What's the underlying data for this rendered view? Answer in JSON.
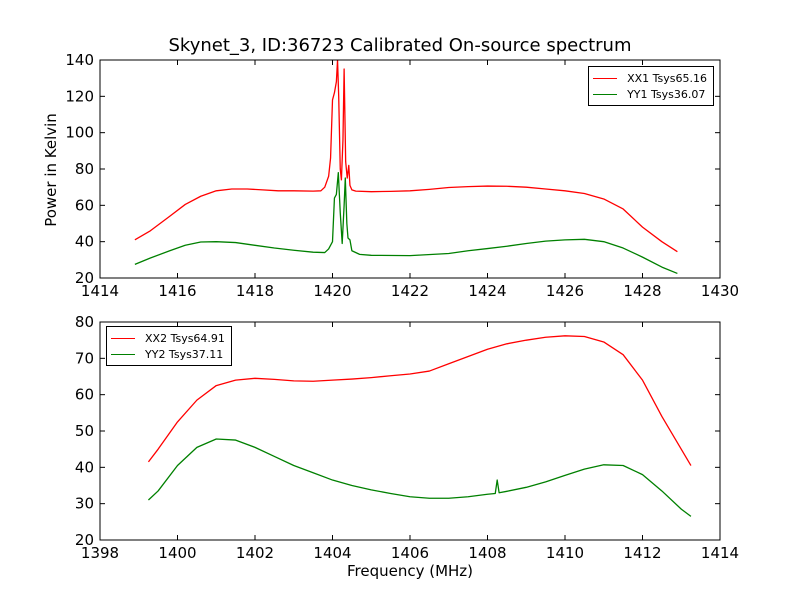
{
  "chart_data": [
    {
      "type": "line",
      "title": "Skynet_3, ID:36723 Calibrated On-source spectrum",
      "ylabel": "Power in Kelvin",
      "xlabel": "",
      "xlim": [
        1414,
        1430
      ],
      "ylim": [
        20,
        140
      ],
      "xticks": [
        1414,
        1416,
        1418,
        1420,
        1422,
        1424,
        1426,
        1428,
        1430
      ],
      "yticks": [
        20,
        40,
        60,
        80,
        100,
        120,
        140
      ],
      "legend_position": "top-right",
      "series": [
        {
          "name": "XX1 Tsys65.16",
          "color": "#ff0000",
          "points": [
            [
              1414.9,
              41
            ],
            [
              1415.3,
              46
            ],
            [
              1415.8,
              54
            ],
            [
              1416.2,
              60.5
            ],
            [
              1416.6,
              65
            ],
            [
              1417.0,
              68
            ],
            [
              1417.4,
              69
            ],
            [
              1417.8,
              69
            ],
            [
              1418.2,
              68.5
            ],
            [
              1418.6,
              68
            ],
            [
              1419.0,
              68
            ],
            [
              1419.5,
              67.8
            ],
            [
              1419.7,
              68
            ],
            [
              1419.8,
              70
            ],
            [
              1419.9,
              76
            ],
            [
              1419.95,
              86
            ],
            [
              1420.0,
              118
            ],
            [
              1420.05,
              122
            ],
            [
              1420.1,
              128
            ],
            [
              1420.13,
              140
            ],
            [
              1420.16,
              120
            ],
            [
              1420.2,
              80
            ],
            [
              1420.23,
              74
            ],
            [
              1420.27,
              96
            ],
            [
              1420.3,
              135
            ],
            [
              1420.34,
              84
            ],
            [
              1420.38,
              75
            ],
            [
              1420.42,
              82
            ],
            [
              1420.45,
              71
            ],
            [
              1420.5,
              68.5
            ],
            [
              1420.6,
              67.8
            ],
            [
              1421.0,
              67.5
            ],
            [
              1421.5,
              67.7
            ],
            [
              1422.0,
              68
            ],
            [
              1422.5,
              68.8
            ],
            [
              1423.0,
              69.8
            ],
            [
              1423.5,
              70.3
            ],
            [
              1424.0,
              70.6
            ],
            [
              1424.5,
              70.5
            ],
            [
              1425.0,
              70
            ],
            [
              1425.5,
              69
            ],
            [
              1426.0,
              68
            ],
            [
              1426.5,
              66.5
            ],
            [
              1427.0,
              63.5
            ],
            [
              1427.5,
              58
            ],
            [
              1428.0,
              48
            ],
            [
              1428.5,
              40
            ],
            [
              1428.9,
              34.5
            ]
          ]
        },
        {
          "name": "YY1 Tsys36.07",
          "color": "#008000",
          "points": [
            [
              1414.9,
              27.5
            ],
            [
              1415.3,
              31
            ],
            [
              1415.8,
              35
            ],
            [
              1416.2,
              38
            ],
            [
              1416.6,
              39.8
            ],
            [
              1417.0,
              40
            ],
            [
              1417.5,
              39.5
            ],
            [
              1418.0,
              38
            ],
            [
              1418.5,
              36.5
            ],
            [
              1419.0,
              35.3
            ],
            [
              1419.5,
              34.2
            ],
            [
              1419.8,
              34
            ],
            [
              1419.9,
              36
            ],
            [
              1420.0,
              40
            ],
            [
              1420.05,
              64
            ],
            [
              1420.1,
              66
            ],
            [
              1420.15,
              78
            ],
            [
              1420.2,
              56
            ],
            [
              1420.25,
              39
            ],
            [
              1420.3,
              60
            ],
            [
              1420.33,
              75
            ],
            [
              1420.37,
              50
            ],
            [
              1420.4,
              42
            ],
            [
              1420.45,
              41
            ],
            [
              1420.5,
              35
            ],
            [
              1420.7,
              33
            ],
            [
              1421.0,
              32.5
            ],
            [
              1422.0,
              32.3
            ],
            [
              1423.0,
              33.5
            ],
            [
              1423.5,
              35
            ],
            [
              1424.0,
              36.2
            ],
            [
              1424.5,
              37.5
            ],
            [
              1425.0,
              39
            ],
            [
              1425.5,
              40.3
            ],
            [
              1426.0,
              41
            ],
            [
              1426.5,
              41.3
            ],
            [
              1427.0,
              40
            ],
            [
              1427.5,
              36.5
            ],
            [
              1428.0,
              31.5
            ],
            [
              1428.5,
              26
            ],
            [
              1428.9,
              22.5
            ]
          ]
        }
      ]
    },
    {
      "type": "line",
      "title": "",
      "ylabel": "",
      "xlabel": "Frequency (MHz)",
      "xlim": [
        1398,
        1414
      ],
      "ylim": [
        20,
        80
      ],
      "xticks": [
        1398,
        1400,
        1402,
        1404,
        1406,
        1408,
        1410,
        1412,
        1414
      ],
      "yticks": [
        20,
        30,
        40,
        50,
        60,
        70,
        80
      ],
      "legend_position": "top-left",
      "series": [
        {
          "name": "XX2 Tsys64.91",
          "color": "#ff0000",
          "points": [
            [
              1399.25,
              41.5
            ],
            [
              1399.5,
              45
            ],
            [
              1400.0,
              52.5
            ],
            [
              1400.5,
              58.5
            ],
            [
              1401.0,
              62.5
            ],
            [
              1401.5,
              64
            ],
            [
              1402.0,
              64.5
            ],
            [
              1402.5,
              64.2
            ],
            [
              1403.0,
              63.8
            ],
            [
              1403.5,
              63.7
            ],
            [
              1404.0,
              64
            ],
            [
              1404.5,
              64.3
            ],
            [
              1405.0,
              64.7
            ],
            [
              1405.5,
              65.2
            ],
            [
              1406.0,
              65.7
            ],
            [
              1406.5,
              66.5
            ],
            [
              1407.0,
              68.5
            ],
            [
              1407.5,
              70.5
            ],
            [
              1408.0,
              72.5
            ],
            [
              1408.5,
              74
            ],
            [
              1409.0,
              75
            ],
            [
              1409.5,
              75.8
            ],
            [
              1410.0,
              76.2
            ],
            [
              1410.5,
              76
            ],
            [
              1411.0,
              74.5
            ],
            [
              1411.5,
              71
            ],
            [
              1412.0,
              64
            ],
            [
              1412.5,
              54
            ],
            [
              1413.0,
              45
            ],
            [
              1413.25,
              40.5
            ]
          ]
        },
        {
          "name": "YY2 Tsys37.11",
          "color": "#008000",
          "points": [
            [
              1399.25,
              31
            ],
            [
              1399.5,
              33.5
            ],
            [
              1400.0,
              40.5
            ],
            [
              1400.5,
              45.5
            ],
            [
              1401.0,
              47.8
            ],
            [
              1401.5,
              47.5
            ],
            [
              1402.0,
              45.5
            ],
            [
              1402.5,
              43
            ],
            [
              1403.0,
              40.5
            ],
            [
              1403.5,
              38.5
            ],
            [
              1404.0,
              36.5
            ],
            [
              1404.5,
              35
            ],
            [
              1405.0,
              33.8
            ],
            [
              1405.5,
              32.8
            ],
            [
              1406.0,
              31.9
            ],
            [
              1406.5,
              31.5
            ],
            [
              1407.0,
              31.5
            ],
            [
              1407.5,
              31.9
            ],
            [
              1408.0,
              32.6
            ],
            [
              1408.2,
              32.8
            ],
            [
              1408.25,
              36.5
            ],
            [
              1408.3,
              33
            ],
            [
              1408.5,
              33.4
            ],
            [
              1409.0,
              34.5
            ],
            [
              1409.5,
              36
            ],
            [
              1410.0,
              37.8
            ],
            [
              1410.5,
              39.5
            ],
            [
              1411.0,
              40.7
            ],
            [
              1411.5,
              40.5
            ],
            [
              1412.0,
              38
            ],
            [
              1412.5,
              33.5
            ],
            [
              1413.0,
              28.5
            ],
            [
              1413.25,
              26.5
            ]
          ]
        }
      ]
    }
  ]
}
